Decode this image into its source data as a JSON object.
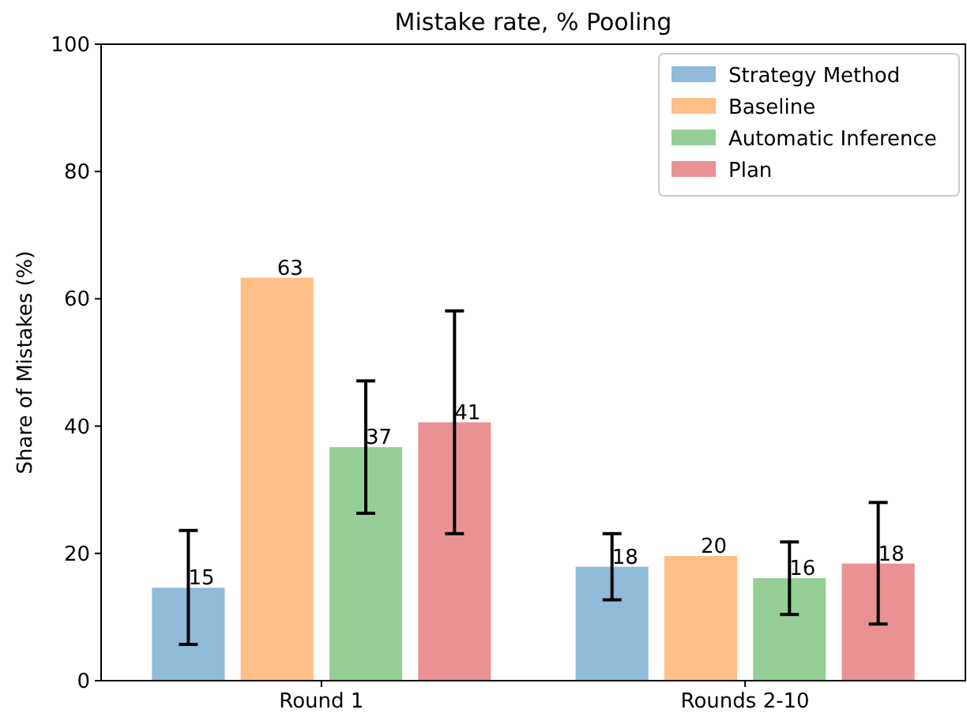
{
  "chart_data": {
    "type": "bar",
    "title": "Mistake rate, % Pooling",
    "ylabel": "Share of Mistakes (%)",
    "categories": [
      "Round 1",
      "Rounds 2-10"
    ],
    "series": [
      {
        "name": "Strategy Method",
        "color": "#8fbbd9",
        "values": [
          14.6,
          17.9
        ],
        "errors": [
          [
            5.7,
            23.6
          ],
          [
            12.7,
            23.1
          ]
        ],
        "value_labels": [
          "15",
          "18"
        ]
      },
      {
        "name": "Baseline",
        "color": "#ffbf86",
        "values": [
          63.3,
          19.6
        ],
        "value_labels": [
          "63",
          "20"
        ]
      },
      {
        "name": "Automatic Inference",
        "color": "#95cf95",
        "values": [
          36.7,
          16.1
        ],
        "errors": [
          [
            26.3,
            47.1
          ],
          [
            10.4,
            21.8
          ]
        ],
        "value_labels": [
          "37",
          "16"
        ]
      },
      {
        "name": "Plan",
        "color": "#ea9293",
        "values": [
          40.6,
          18.4
        ],
        "errors": [
          [
            23.1,
            58.1
          ],
          [
            8.9,
            28.0
          ]
        ],
        "value_labels": [
          "41",
          "18"
        ]
      }
    ],
    "ylim": [
      0,
      100
    ],
    "yticks": [
      0,
      20,
      40,
      60,
      80,
      100
    ],
    "legend": "top right"
  }
}
